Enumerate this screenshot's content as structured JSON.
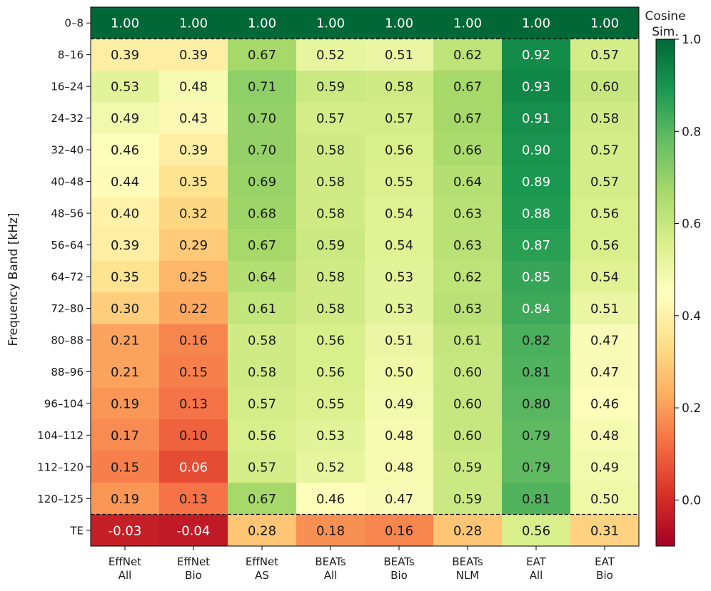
{
  "chart_data": {
    "type": "heatmap",
    "ylabel": "Frequency Band [kHz]",
    "colorbar_label": "Cosine Sim.",
    "colorbar_range": [
      -0.1,
      1.0
    ],
    "colorbar_ticks": [
      "0.0",
      "0.2",
      "0.4",
      "0.6",
      "0.8",
      "1.0"
    ],
    "colormap": "RdYlGn",
    "columns": [
      "EffNet All",
      "EffNet Bio",
      "EffNet AS",
      "BEATs All",
      "BEATs Bio",
      "BEATs NLM",
      "EAT All",
      "EAT Bio"
    ],
    "rows": [
      "0–8",
      "8–16",
      "16–24",
      "24–32",
      "32–40",
      "40–48",
      "48–56",
      "56–64",
      "64–72",
      "72–80",
      "80–88",
      "88–96",
      "96–104",
      "104–112",
      "112–120",
      "120–125",
      "TE"
    ],
    "values": [
      [
        1.0,
        1.0,
        1.0,
        1.0,
        1.0,
        1.0,
        1.0,
        1.0
      ],
      [
        0.39,
        0.39,
        0.67,
        0.52,
        0.51,
        0.62,
        0.92,
        0.57
      ],
      [
        0.53,
        0.48,
        0.71,
        0.59,
        0.58,
        0.67,
        0.93,
        0.6
      ],
      [
        0.49,
        0.43,
        0.7,
        0.57,
        0.57,
        0.67,
        0.91,
        0.58
      ],
      [
        0.46,
        0.39,
        0.7,
        0.58,
        0.56,
        0.66,
        0.9,
        0.57
      ],
      [
        0.44,
        0.35,
        0.69,
        0.58,
        0.55,
        0.64,
        0.89,
        0.57
      ],
      [
        0.4,
        0.32,
        0.68,
        0.58,
        0.54,
        0.63,
        0.88,
        0.56
      ],
      [
        0.39,
        0.29,
        0.67,
        0.59,
        0.54,
        0.63,
        0.87,
        0.56
      ],
      [
        0.35,
        0.25,
        0.64,
        0.58,
        0.53,
        0.62,
        0.85,
        0.54
      ],
      [
        0.3,
        0.22,
        0.61,
        0.58,
        0.53,
        0.63,
        0.84,
        0.51
      ],
      [
        0.21,
        0.16,
        0.58,
        0.56,
        0.51,
        0.61,
        0.82,
        0.47
      ],
      [
        0.21,
        0.15,
        0.58,
        0.56,
        0.5,
        0.6,
        0.81,
        0.47
      ],
      [
        0.19,
        0.13,
        0.57,
        0.55,
        0.49,
        0.6,
        0.8,
        0.46
      ],
      [
        0.17,
        0.1,
        0.56,
        0.53,
        0.48,
        0.6,
        0.79,
        0.48
      ],
      [
        0.15,
        0.06,
        0.57,
        0.52,
        0.48,
        0.59,
        0.79,
        0.49
      ],
      [
        0.19,
        0.13,
        0.67,
        0.46,
        0.47,
        0.59,
        0.81,
        0.5
      ],
      [
        -0.03,
        -0.04,
        0.28,
        0.18,
        0.16,
        0.28,
        0.56,
        0.31
      ]
    ],
    "value_format": "2 decimals",
    "dashed_separators": [
      "between 0–8 and 8–16",
      "between 120–125 and TE"
    ]
  }
}
